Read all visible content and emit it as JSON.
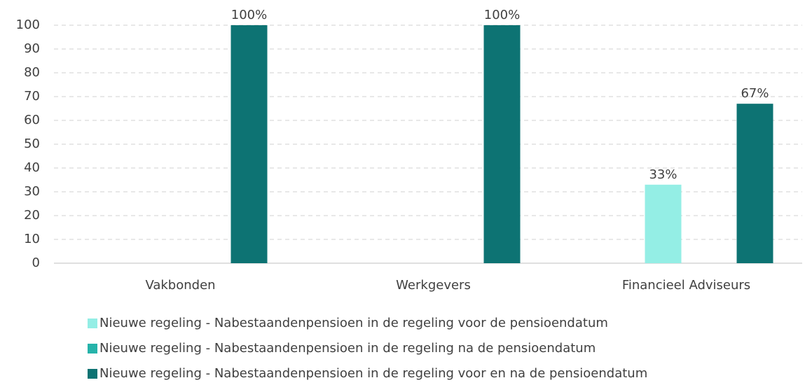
{
  "chart_data": {
    "type": "bar",
    "categories": [
      "Vakbonden",
      "Werkgevers",
      "Financieel Adviseurs"
    ],
    "series": [
      {
        "name": "Nieuwe regeling - Nabestaandenpensioen in de regeling voor de pensioendatum",
        "color": "#94eee5",
        "values": [
          0,
          0,
          33
        ],
        "value_labels": [
          null,
          null,
          "33%"
        ]
      },
      {
        "name": "Nieuwe regeling - Nabestaandenpensioen in de regeling na de pensioendatum",
        "color": "#26b3aa",
        "values": [
          0,
          0,
          0
        ],
        "value_labels": [
          null,
          null,
          null
        ]
      },
      {
        "name": "Nieuwe regeling - Nabestaandenpensioen in de regeling voor en na de pensioendatum",
        "color": "#0d7373",
        "values": [
          100,
          100,
          67
        ],
        "value_labels": [
          "100%",
          "100%",
          "67%"
        ]
      }
    ],
    "ylim": [
      0,
      100
    ],
    "yticks": [
      0,
      10,
      20,
      30,
      40,
      50,
      60,
      70,
      80,
      90,
      100
    ],
    "grid": true,
    "legend": "bottom"
  }
}
